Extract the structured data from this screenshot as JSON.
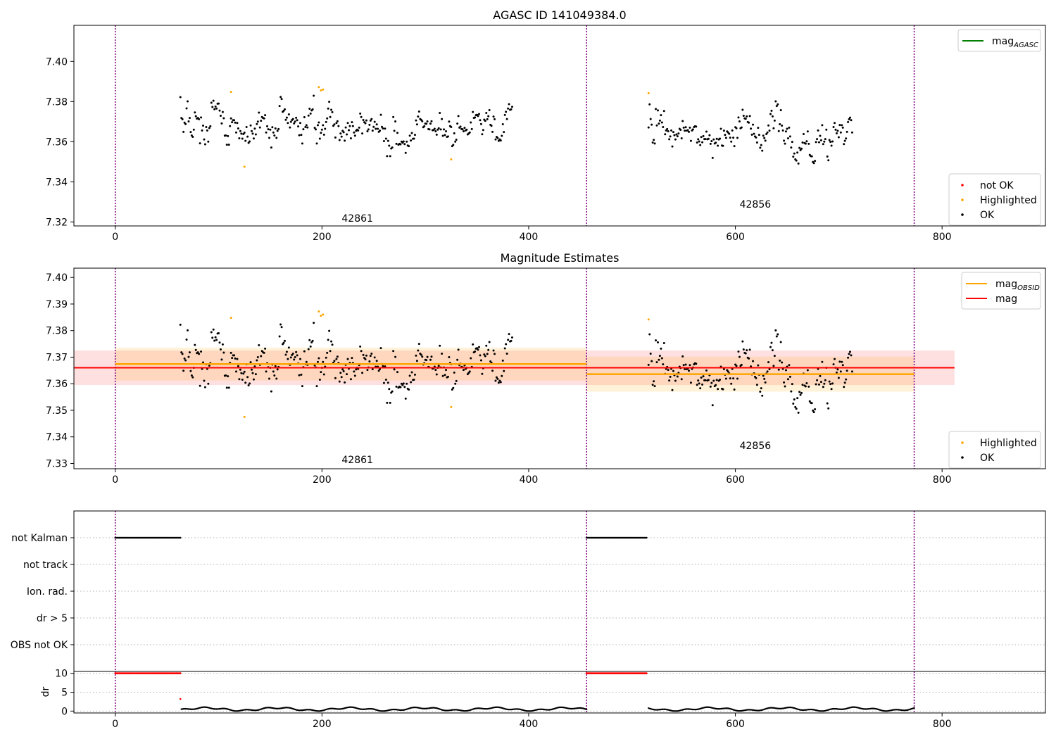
{
  "figure": {
    "title": "AGASC ID 141049384.0"
  },
  "colors": {
    "ok": "#000000",
    "highlighted": "#ffa500",
    "not_ok": "#ff0000",
    "mag_agasc": "#008000",
    "mag_obsid": "#ffa500",
    "mag": "#ff0000",
    "obs_boundary": "#800080",
    "grid": "#b0b0b0"
  },
  "chart_data": [
    {
      "panel": "top",
      "type": "scatter",
      "title": "AGASC ID 141049384.0",
      "xlim": [
        -40,
        900
      ],
      "ylim": [
        7.318,
        7.418
      ],
      "xticks": [
        0,
        200,
        400,
        600,
        800
      ],
      "yticks": [
        7.32,
        7.34,
        7.36,
        7.38,
        7.4
      ],
      "ytick_labels": [
        "7.32",
        "7.34",
        "7.36",
        "7.38",
        "7.40"
      ],
      "obs_boundaries": [
        0,
        456,
        773
      ],
      "obsid_labels": [
        {
          "text": "42861",
          "x": 230,
          "y": 7.3218
        },
        {
          "text": "42856",
          "x": 615,
          "y": 7.3288
        }
      ],
      "legend_upper": [
        {
          "label": "mag",
          "sub": "AGASC",
          "color": "#008000"
        }
      ],
      "legend_lower": [
        {
          "label": "not OK",
          "color": "#ff0000"
        },
        {
          "label": "Highlighted",
          "color": "#ffa500"
        },
        {
          "label": "OK",
          "color": "#000000"
        }
      ],
      "series": [
        {
          "name": "OK",
          "x_start": 63,
          "x_step": 1,
          "values": [
            7.3822,
            7.3718,
            7.3712,
            7.3649,
            7.3695,
            7.3688,
            7.3766,
            7.3801,
            7.3701,
            7.3718,
            7.3648,
            7.3631,
            7.3624,
            7.366,
            7.3746,
            7.3727,
            7.3715,
            7.3718,
            7.3712,
            7.3592,
            7.3721,
            7.3656,
            7.368,
            7.3611,
            7.3587,
            7.3673,
            7.3656,
            7.36,
            7.3668,
            7.3677,
            7.3794,
            7.3773,
            7.3804,
            7.3762,
            7.3775,
            7.3765,
            7.3789,
            7.379,
            7.3755,
            7.3729,
            7.3691,
            7.3748,
            7.3717,
            7.363,
            7.3631,
            7.3585,
            7.3628,
            7.3585,
            7.3678,
            7.3716,
            7.3697,
            7.3707,
            7.3707,
            7.3695,
            7.3646,
            7.3693,
            7.3666,
            7.3617,
            7.3653,
            7.364,
            7.3615,
            7.3638,
            7.3645,
            7.3604,
            7.3673,
            7.3625,
            7.3594,
            7.3601,
            7.3681,
            7.3653,
            7.364,
            7.3616,
            7.3665,
            7.3636,
            7.3688,
            7.37,
            7.3745,
            7.3671,
            7.3704,
            7.3723,
            7.3718,
            7.3716,
            7.3732,
            7.3646,
            7.3677,
            7.3662,
            7.3619,
            7.366,
            7.3571,
            7.3672,
            7.3646,
            7.3631,
            7.3666,
            7.3619,
            7.3654,
            7.3663,
            7.3778,
            7.3823,
            7.3813,
            7.3749,
            7.3754,
            7.3761,
            7.3709,
            7.372,
            7.3693,
            7.3736,
            7.3671,
            7.3699,
            7.3708,
            7.3713,
            7.3691,
            7.37,
            7.3719,
            7.3707,
            7.3676,
            7.3632,
            7.3693,
            7.3634,
            7.3591,
            7.3662,
            7.3722,
            7.3673,
            7.3682,
            7.3671,
            7.373,
            7.3764,
            7.374,
            7.3756,
            7.3761,
            7.3829,
            7.3669,
            7.3661,
            7.3591,
            7.3682,
            7.3696,
            7.3615,
            7.3644,
            7.366,
            7.3682,
            7.3635,
            7.3664,
            7.3698,
            7.3716,
            7.3765,
            7.3799,
            7.3723,
            7.3759,
            7.3747,
            7.3679,
            7.3686,
            7.3621,
            7.3693,
            7.3702,
            7.3678,
            7.3608,
            7.3641,
            7.3625,
            7.3654,
            7.3647,
            7.3605,
            7.3671,
            7.3636,
            7.3693,
            7.3657,
            7.3678,
            7.3617,
            7.3697,
            7.3678,
            7.3646,
            7.363,
            7.3654,
            7.366,
            7.3656,
            7.367,
            7.374,
            7.3723,
            7.3641,
            7.3708,
            7.3697,
            7.3692,
            7.3706,
            7.3652,
            7.3661,
            7.3684,
            7.3705,
            7.3713,
            7.3655,
            7.3674,
            7.3699,
            7.3664,
            7.3686,
            7.3664,
            7.3649,
            7.3655,
            7.3734,
            7.3674,
            7.3666,
            7.3603,
            7.3665,
            7.3615,
            7.3528,
            7.3604,
            7.358,
            7.3528,
            7.3566,
            7.3571,
            7.3723,
            7.3654,
            7.3701,
            7.3589,
            7.3644,
            7.3585,
            7.3589,
            7.3587,
            7.36,
            7.3595,
            7.3601,
            7.3588,
            7.3544,
            7.36,
            7.3581,
            7.3578,
            7.363,
            7.3606,
            7.3643,
            7.3614,
            7.3615,
            7.3634,
            7.3706,
            7.3686,
            7.3725,
            7.375,
            7.3713,
            7.3709,
            7.3702,
            7.3672,
            7.3677,
            7.369,
            7.3689,
            7.3701,
            7.3663,
            7.3661,
            7.369,
            7.3702,
            7.3657,
            7.3658,
            7.3664,
            7.3652,
            7.3635,
            7.366,
            7.3667,
            7.3743,
            7.3661,
            7.3713,
            7.3629,
            7.3661,
            7.3633,
            7.3652,
            7.3624,
            7.3626,
            7.37,
            7.3678,
            7.3673,
            7.3578,
            7.3584,
            7.3642,
            7.36,
            7.361,
            7.369,
            7.3728,
            7.367,
            7.3675,
            7.3663,
            7.3662,
            7.3652,
            7.3669,
            7.3656,
            7.366,
            7.3636,
            7.3641,
            7.3646,
            7.3696,
            7.3663,
            7.3748,
            7.3718,
            7.3721,
            7.3732,
            7.3734,
            7.3728,
            7.3738,
            7.3707,
            7.3688,
            7.3637,
            7.3658,
            7.371,
            7.3704,
            7.3743,
            7.3712,
            7.3727,
            7.3757,
            7.3684,
            7.3679,
            7.3649,
            7.3725,
            7.3712,
            7.3611,
            7.3624,
            7.3618,
            7.3604,
            7.3611,
            7.3606,
            7.3629,
            7.3687,
            7.3648,
            7.3733,
            7.3749,
            7.3713,
            7.3765,
            7.3787,
            7.3759,
            7.3761,
            7.3774
          ],
          "x2_start": 516,
          "x2_step": 1,
          "values2": [
            7.3671,
            7.3786,
            7.3713,
            7.3685,
            7.3596,
            7.3609,
            7.3591,
            7.3763,
            7.3681,
            7.3756,
            7.369,
            7.3705,
            7.3732,
            7.3696,
            7.3673,
            7.3753,
            7.3637,
            7.3656,
            7.3663,
            7.3652,
            7.3612,
            7.3626,
            7.3656,
            7.3576,
            7.3648,
            7.3632,
            7.3611,
            7.3636,
            7.3627,
            7.3641,
            7.3664,
            7.3659,
            7.3617,
            7.3703,
            7.367,
            7.3655,
            7.3672,
            7.3655,
            7.3657,
            7.3649,
            7.367,
            7.3604,
            7.3656,
            7.3661,
            7.3673,
            7.3677,
            7.3675,
            7.3596,
            7.3612,
            7.3601,
            7.3583,
            7.3623,
            7.3597,
            7.3628,
            7.3613,
            7.3613,
            7.365,
            7.3612,
            7.3614,
            7.3632,
            7.3589,
            7.3603,
            7.3519,
            7.3611,
            7.3591,
            7.3595,
            7.3614,
            7.358,
            7.3611,
            7.3615,
            7.3664,
            7.3581,
            7.3579,
            7.3655,
            7.3634,
            7.3619,
            7.3651,
            7.3646,
            7.3639,
            7.362,
            7.36,
            7.3656,
            7.362,
            7.3578,
            7.3672,
            7.3667,
            7.3619,
            7.3721,
            7.3701,
            7.3667,
            7.3671,
            7.3759,
            7.3729,
            7.3716,
            7.3714,
            7.3726,
            7.3698,
            7.3695,
            7.3728,
            7.3665,
            7.3635,
            7.3685,
            7.3639,
            7.3626,
            7.3621,
            7.3596,
            7.3669,
            7.3634,
            7.357,
            7.3583,
            7.3555,
            7.363,
            7.3618,
            7.3605,
            7.3638,
            7.3646,
            7.3681,
            7.3655,
            7.3738,
            7.3754,
            7.3726,
            7.3667,
            7.3705,
            7.3801,
            7.3778,
            7.3786,
            7.3653,
            7.3687,
            7.3757,
            7.368,
            7.3656,
            7.3605,
            7.359,
            7.3651,
            7.3664,
            7.3617,
            7.367,
            7.3626,
            7.3571,
            7.3599,
            7.3525,
            7.3541,
            7.3512,
            7.3506,
            7.3546,
            7.3491,
            7.3569,
            7.3558,
            7.3565,
            7.3596,
            7.3638,
            7.3593,
            7.359,
            7.3602,
            7.3651,
            7.3589,
            7.3534,
            7.3528,
            7.3527,
            7.3499,
            7.3493,
            7.3504,
            7.3598,
            7.3613,
            7.3656,
            7.3597,
            7.3629,
            7.3607,
            7.3682,
            7.3588,
            7.36,
            7.3613,
            7.366,
            7.3526,
            7.3507,
            7.3608,
            7.3599,
            7.358,
            7.3601,
            7.3673,
            7.3693,
            7.366,
            7.3642,
            7.3654,
            7.3622,
            7.3683,
            7.3646,
            7.3682,
            7.367,
            7.3588,
            7.3604,
            7.3616,
            7.3649,
            7.3698,
            7.3712,
            7.372,
            7.3707,
            7.3646
          ]
        },
        {
          "name": "Highlighted",
          "points": [
            [
              112,
              7.3848
            ],
            [
              125,
              7.3475
            ],
            [
              197,
              7.3872
            ],
            [
              199,
              7.3856
            ],
            [
              201,
              7.386
            ],
            [
              325,
              7.3512
            ],
            [
              516,
              7.3842
            ]
          ]
        },
        {
          "name": "not OK",
          "points": []
        }
      ]
    },
    {
      "panel": "middle",
      "type": "scatter",
      "title": "Magnitude Estimates",
      "xlim": [
        -40,
        900
      ],
      "ylim": [
        7.328,
        7.4035
      ],
      "xticks": [
        0,
        200,
        400,
        600,
        800
      ],
      "yticks": [
        7.33,
        7.34,
        7.35,
        7.36,
        7.37,
        7.38,
        7.39,
        7.4
      ],
      "ytick_labels": [
        "7.33",
        "7.34",
        "7.35",
        "7.36",
        "7.37",
        "7.38",
        "7.39",
        "7.40"
      ],
      "obs_boundaries": [
        0,
        456,
        773
      ],
      "obsid_labels": [
        {
          "text": "42861",
          "x": 230,
          "y": 7.3315
        },
        {
          "text": "42856",
          "x": 615,
          "y": 7.3367
        }
      ],
      "legend_upper": [
        {
          "label": "mag",
          "sub": "OBSID",
          "color": "#ffa500"
        },
        {
          "label": "mag",
          "sub": "",
          "color": "#ff0000"
        }
      ],
      "legend_lower": [
        {
          "label": "Highlighted",
          "color": "#ffa500"
        },
        {
          "label": "OK",
          "color": "#000000"
        }
      ],
      "mag": {
        "value": 7.366,
        "band": [
          7.3595,
          7.3725
        ],
        "x_range": [
          -40,
          812
        ]
      },
      "mag_obsid": [
        {
          "obsid": "42861",
          "x_range": [
            0,
            456
          ],
          "value": 7.3674,
          "band": [
            7.3612,
            7.3736
          ]
        },
        {
          "obsid": "42856",
          "x_range": [
            456,
            773
          ],
          "value": 7.3636,
          "band": [
            7.357,
            7.3702
          ]
        }
      ]
    },
    {
      "panel": "flags",
      "type": "scatter",
      "xlim": [
        -40,
        900
      ],
      "categories": [
        "not Kalman",
        "not track",
        "Ion. rad.",
        "dr > 5",
        "OBS not OK"
      ],
      "obs_boundaries": [
        0,
        456,
        773
      ],
      "not_kalman_ranges": [
        [
          0,
          63
        ],
        [
          456,
          514
        ]
      ]
    },
    {
      "panel": "dr",
      "type": "scatter",
      "xlim": [
        -40,
        900
      ],
      "ylim": [
        -0.5,
        10.5
      ],
      "ylabel": "dr",
      "yticks": [
        0,
        5,
        10
      ],
      "ytick_labels": [
        "0",
        "5",
        "10"
      ],
      "xticks": [
        0,
        200,
        400,
        600,
        800
      ],
      "xtick_labels": [
        "0",
        "200",
        "400",
        "600",
        "800"
      ],
      "obs_boundaries": [
        0,
        456,
        773
      ],
      "capped_value": 10,
      "capped_ranges": [
        [
          0,
          63
        ],
        [
          456,
          514
        ]
      ],
      "not_ok_points": [
        [
          63,
          3.2
        ]
      ],
      "ok_ranges": [
        [
          64,
          456
        ],
        [
          516,
          773
        ]
      ],
      "ok_mean": 0.5
    }
  ]
}
